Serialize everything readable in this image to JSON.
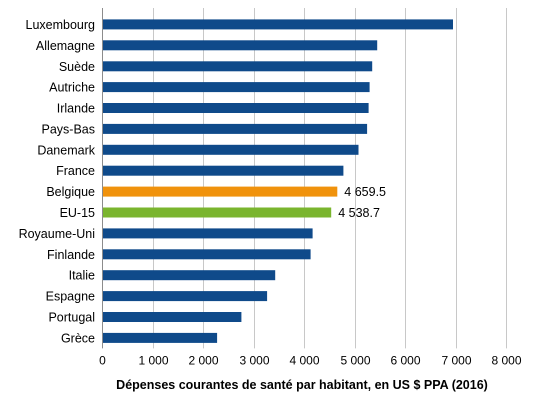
{
  "chart_data": {
    "type": "bar",
    "orientation": "horizontal",
    "categories": [
      "Luxembourg",
      "Allemagne",
      "Suède",
      "Autriche",
      "Irlande",
      "Pays-Bas",
      "Danemark",
      "France",
      "Belgique",
      "EU-15",
      "Royaume-Uni",
      "Finlande",
      "Italie",
      "Espagne",
      "Portugal",
      "Grèce"
    ],
    "values": [
      6950,
      5450,
      5350,
      5300,
      5280,
      5250,
      5080,
      4780,
      4659.5,
      4538.7,
      4170,
      4130,
      3430,
      3270,
      2760,
      2280
    ],
    "bar_colors": [
      "#0f4a8a",
      "#0f4a8a",
      "#0f4a8a",
      "#0f4a8a",
      "#0f4a8a",
      "#0f4a8a",
      "#0f4a8a",
      "#0f4a8a",
      "#f0920c",
      "#7ab52e",
      "#0f4a8a",
      "#0f4a8a",
      "#0f4a8a",
      "#0f4a8a",
      "#0f4a8a",
      "#0f4a8a"
    ],
    "data_labels": [
      {
        "category": "Belgique",
        "text": "4 659.5"
      },
      {
        "category": "EU-15",
        "text": "4 538.7"
      }
    ],
    "xlabel": "Dépenses courantes de santé par habitant, en US $ PPA (2016)",
    "xlim": [
      0,
      8000
    ],
    "xticks": [
      0,
      1000,
      2000,
      3000,
      4000,
      5000,
      6000,
      7000,
      8000
    ],
    "xtick_labels": [
      "0",
      "1 000",
      "2 000",
      "3 000",
      "4 000",
      "5 000",
      "6 000",
      "7 000",
      "8 000"
    ],
    "grid": true,
    "legend": "none"
  }
}
